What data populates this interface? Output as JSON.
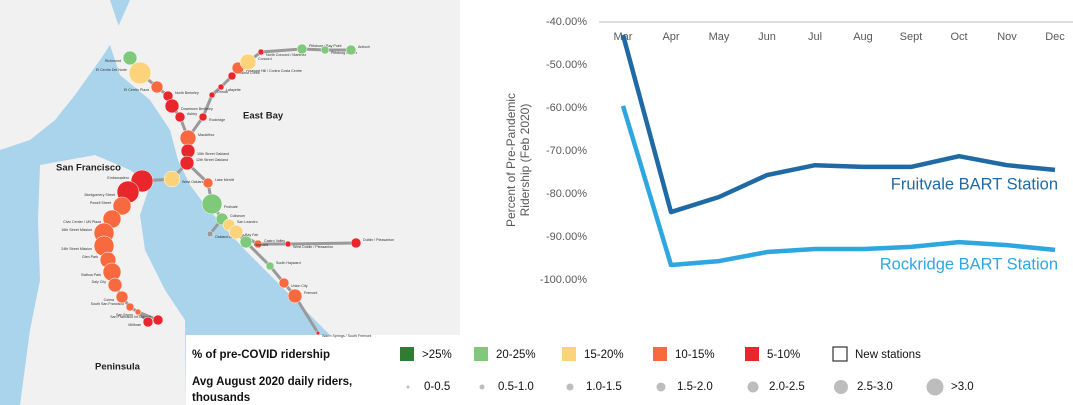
{
  "map": {
    "regions": [
      "San Francisco",
      "East Bay",
      "Peninsula"
    ],
    "stations": [
      "Richmond",
      "El Cerrito Del Norte",
      "El Cerrito Plaza",
      "North Berkeley",
      "Downtown Berkeley",
      "Ashby",
      "Rockridge",
      "MacArthur",
      "19th Street Oakland",
      "12th Street Oakland",
      "West Oakland",
      "Embarcadero",
      "Montgomery Street",
      "Powell Street",
      "Civic Center / UN Plaza",
      "16th Street Mission",
      "24th Street Mission",
      "Glen Park",
      "Balboa Park",
      "Daly City",
      "Colma",
      "South San Francisco",
      "San Bruno",
      "San Francisco Int'l Airport",
      "Millbrae",
      "Lake Merritt",
      "Fruitvale",
      "Coliseum",
      "Oakland Airport",
      "San Leandro",
      "Bay Fair",
      "Castro Valley",
      "West Dublin / Pleasanton",
      "Dublin / Pleasanton",
      "Hayward",
      "South Hayward",
      "Union City",
      "Fremont",
      "Warm Springs / South Fremont",
      "Orinda",
      "Lafayette",
      "Walnut Creek",
      "Pleasant Hill / Contra Costa Centre",
      "Concord",
      "North Concord / Martinez",
      "Pittsburg / Bay Point",
      "Pittsburg Center",
      "Antioch"
    ],
    "legend": {
      "color_title": "% of pre-COVID ridership",
      "colors": [
        ">25%",
        "20-25%",
        "15-20%",
        "10-15%",
        "5-10%",
        "New stations"
      ],
      "size_title": [
        "Avg August 2020 daily riders,",
        "thousands"
      ],
      "sizes": [
        "0-0.5",
        "0.5-1.0",
        "1.0-1.5",
        "1.5-2.0",
        "2.0-2.5",
        "2.5-3.0",
        ">3.0"
      ]
    }
  },
  "chart_data": {
    "type": "line",
    "ylabel": [
      "Percent of Pre-Pandemic",
      "Ridership (Feb 2020)"
    ],
    "categories": [
      "Mar",
      "Apr",
      "May",
      "Jun",
      "Jul",
      "Aug",
      "Sept",
      "Oct",
      "Nov",
      "Dec"
    ],
    "series": [
      {
        "name": "Fruitvale BART Station",
        "color": "#1f6aa5",
        "values": [
          -43,
          -84.2,
          -80.7,
          -75.6,
          -73.3,
          -73.7,
          -73.7,
          -71.2,
          -73.3,
          -74.4
        ]
      },
      {
        "name": "Rockridge BART Station",
        "color": "#2ea7e0",
        "values": [
          -59.5,
          -96.5,
          -95.6,
          -93.5,
          -92.8,
          -92.8,
          -92.3,
          -91.2,
          -91.9,
          -93.0
        ]
      }
    ],
    "ylim": [
      -100,
      -40
    ],
    "yticks": [
      {
        "value": -40,
        "label": "-40.00%"
      },
      {
        "value": -50,
        "label": "-50.00%"
      },
      {
        "value": -60,
        "label": "-60.00%"
      },
      {
        "value": -70,
        "label": "-70.00%"
      },
      {
        "value": -80,
        "label": "-80.00%"
      },
      {
        "value": -90,
        "label": "-90.00%"
      },
      {
        "value": -100,
        "label": "-100.00%"
      }
    ],
    "grid": false
  }
}
